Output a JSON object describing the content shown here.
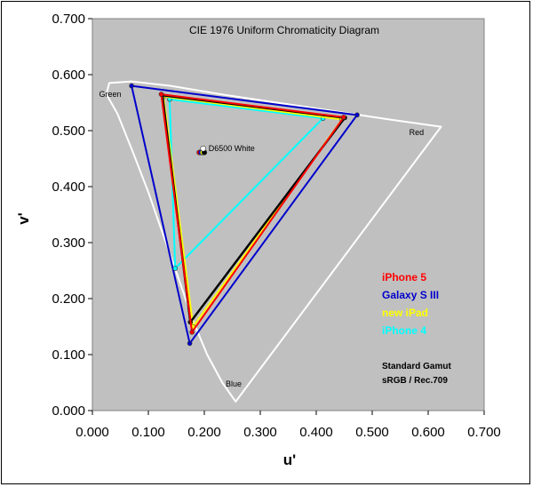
{
  "chart_data": {
    "type": "scatter",
    "title": "CIE 1976 Uniform Chromaticity Diagram",
    "xlabel": "u'",
    "ylabel": "v'",
    "xlim": [
      0,
      0.7
    ],
    "ylim": [
      0,
      0.7
    ],
    "x_ticks": [
      "0.000",
      "0.100",
      "0.200",
      "0.300",
      "0.400",
      "0.500",
      "0.600",
      "0.700"
    ],
    "y_ticks": [
      "0.000",
      "0.100",
      "0.200",
      "0.300",
      "0.400",
      "0.500",
      "0.600",
      "0.700"
    ],
    "grid": false,
    "background": "#c0c0c0",
    "spectral_locus": [
      [
        0.256,
        0.016
      ],
      [
        0.232,
        0.05
      ],
      [
        0.205,
        0.1
      ],
      [
        0.18,
        0.16
      ],
      [
        0.156,
        0.23
      ],
      [
        0.128,
        0.31
      ],
      [
        0.1,
        0.39
      ],
      [
        0.073,
        0.46
      ],
      [
        0.045,
        0.53
      ],
      [
        0.025,
        0.565
      ],
      [
        0.03,
        0.585
      ],
      [
        0.07,
        0.588
      ],
      [
        0.14,
        0.58
      ],
      [
        0.23,
        0.565
      ],
      [
        0.33,
        0.55
      ],
      [
        0.43,
        0.535
      ],
      [
        0.53,
        0.52
      ],
      [
        0.623,
        0.507
      ]
    ],
    "region_labels": [
      {
        "text": "Green",
        "u": 0.012,
        "v": 0.56
      },
      {
        "text": "Red",
        "u": 0.566,
        "v": 0.492
      },
      {
        "text": "Blue",
        "u": 0.238,
        "v": 0.043
      }
    ],
    "white_point": {
      "label": "D6500 White",
      "u": 0.198,
      "v": 0.468
    },
    "white_markers": [
      {
        "u": 0.191,
        "v": 0.461,
        "color": "#ff0000"
      },
      {
        "u": 0.194,
        "v": 0.461,
        "color": "#0000ff"
      },
      {
        "u": 0.197,
        "v": 0.461,
        "color": "#ffff00"
      },
      {
        "u": 0.2,
        "v": 0.461,
        "color": "#000000"
      }
    ],
    "series": [
      {
        "name": "Galaxy S III",
        "color": "#0000cc",
        "points": [
          [
            0.07,
            0.58
          ],
          [
            0.473,
            0.528
          ],
          [
            0.174,
            0.12
          ]
        ]
      },
      {
        "name": "iPhone 4",
        "color": "#00ffff",
        "points": [
          [
            0.138,
            0.556
          ],
          [
            0.412,
            0.522
          ],
          [
            0.148,
            0.254
          ]
        ]
      },
      {
        "name": "new iPad",
        "color": "#ffff00",
        "points": [
          [
            0.127,
            0.561
          ],
          [
            0.446,
            0.52
          ],
          [
            0.18,
            0.15
          ]
        ]
      },
      {
        "name": "",
        "color": "#000000",
        "points": [
          [
            0.125,
            0.563
          ],
          [
            0.451,
            0.523
          ],
          [
            0.175,
            0.158
          ]
        ]
      },
      {
        "name": "iPhone 5",
        "color": "#ff0000",
        "points": [
          [
            0.123,
            0.565
          ],
          [
            0.449,
            0.524
          ],
          [
            0.178,
            0.14
          ]
        ]
      }
    ],
    "legend": [
      {
        "name": "iPhone 5",
        "color": "#ff0000"
      },
      {
        "name": "Galaxy S III",
        "color": "#0000cc"
      },
      {
        "name": "new iPad",
        "color": "#ffff00"
      },
      {
        "name": "iPhone 4",
        "color": "#00ffff"
      }
    ],
    "legend_position": "right",
    "note_lines": [
      "Standard Gamut",
      "sRGB / Rec.709"
    ]
  }
}
